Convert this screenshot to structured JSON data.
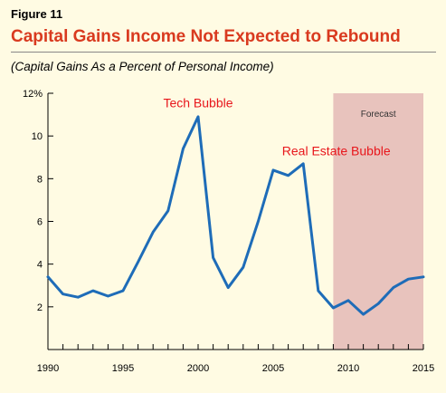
{
  "figure_label": "Figure 11",
  "title": "Capital Gains Income Not Expected to Rebound",
  "subtitle": "(Capital Gains As a Percent of Personal Income)",
  "colors": {
    "title": "#d93a1f",
    "line": "#1e6cb8",
    "forecast_band": "#e8c3bd",
    "annotation": "#e8161b",
    "background": "#fffbe3"
  },
  "chart_data": {
    "type": "line",
    "x": [
      1990,
      1991,
      1992,
      1993,
      1994,
      1995,
      1996,
      1997,
      1998,
      1999,
      2000,
      2001,
      2002,
      2003,
      2004,
      2005,
      2006,
      2007,
      2008,
      2009,
      2010,
      2011,
      2012,
      2013,
      2014,
      2015
    ],
    "series": [
      {
        "values": [
          3.4,
          2.6,
          2.45,
          2.75,
          2.5,
          2.75,
          4.1,
          5.5,
          6.5,
          9.4,
          10.9,
          4.3,
          2.9,
          3.85,
          6.0,
          8.4,
          8.15,
          8.7,
          2.75,
          1.95,
          2.3,
          1.65,
          2.15,
          2.9,
          3.3,
          3.4
        ]
      }
    ],
    "xlim": [
      1990,
      2015
    ],
    "ylim": [
      0,
      12
    ],
    "x_ticks": [
      "1990",
      "1995",
      "2000",
      "2005",
      "2010",
      "2015"
    ],
    "y_ticks": [
      {
        "value": 2,
        "label": "2"
      },
      {
        "value": 4,
        "label": "4"
      },
      {
        "value": 6,
        "label": "6"
      },
      {
        "value": 8,
        "label": "8"
      },
      {
        "value": 10,
        "label": "10"
      },
      {
        "value": 12,
        "label": "12%"
      }
    ],
    "forecast": {
      "start": 2009,
      "end": 2015,
      "label": "Forecast"
    },
    "annotations": [
      {
        "text": "Tech Bubble",
        "x": 2000,
        "y": 11.35
      },
      {
        "text": "Real Estate Bubble",
        "x": 2009.2,
        "y": 9.1
      }
    ],
    "grid": false
  }
}
